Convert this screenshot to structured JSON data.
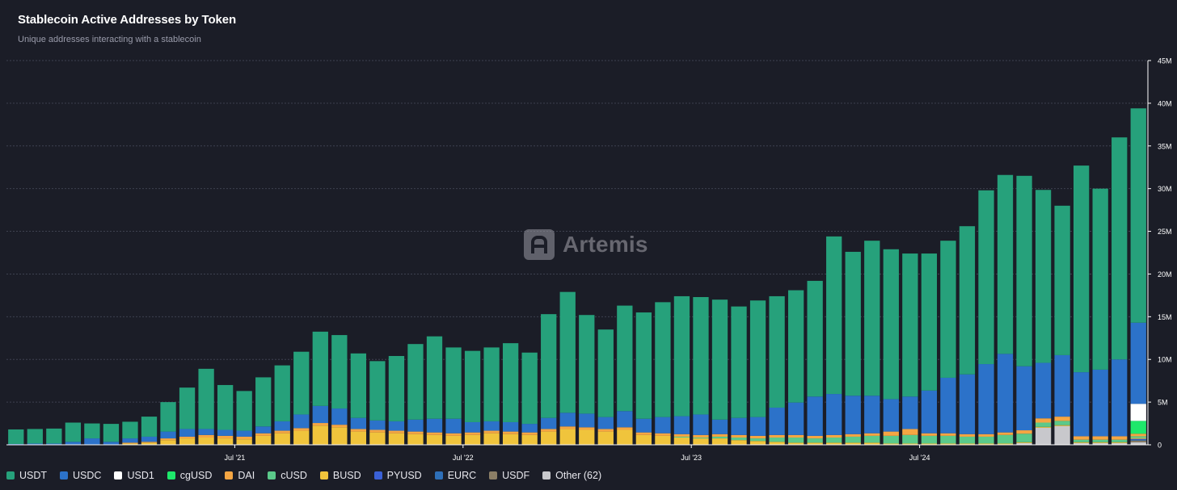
{
  "header": {
    "title": "Stablecoin Active Addresses by Token",
    "subtitle": "Unique addresses interacting with a stablecoin"
  },
  "watermark": {
    "label": "Artemis"
  },
  "chart_data": {
    "type": "bar",
    "stacked": true,
    "title": "Stablecoin Active Addresses by Token",
    "subtitle": "Unique addresses interacting with a stablecoin",
    "y_axis_position": "right",
    "ylim": [
      0,
      45
    ],
    "y_unit": "M",
    "y_ticks": [
      "0",
      "5M",
      "10M",
      "15M",
      "20M",
      "25M",
      "30M",
      "35M",
      "40M",
      "45M"
    ],
    "y_tick_values": [
      0,
      5,
      10,
      15,
      20,
      25,
      30,
      35,
      40,
      45
    ],
    "x_tick_labels": [
      {
        "label": "Jul '21",
        "index": 12
      },
      {
        "label": "Jul '22",
        "index": 24
      },
      {
        "label": "Jul '23",
        "index": 36
      },
      {
        "label": "Jul '24",
        "index": 48
      }
    ],
    "grid": true,
    "legend_position": "bottom-left",
    "categories": [
      "2020-08",
      "2020-09",
      "2020-10",
      "2020-11",
      "2020-12",
      "2021-01",
      "2021-02",
      "2021-03",
      "2021-04",
      "2021-05",
      "2021-06",
      "2021-07",
      "2021-08",
      "2021-09",
      "2021-10",
      "2021-11",
      "2021-12",
      "2022-01",
      "2022-02",
      "2022-03",
      "2022-04",
      "2022-05",
      "2022-06",
      "2022-07",
      "2022-08",
      "2022-09",
      "2022-10",
      "2022-11",
      "2022-12",
      "2023-01",
      "2023-02",
      "2023-03",
      "2023-04",
      "2023-05",
      "2023-06",
      "2023-07",
      "2023-08",
      "2023-09",
      "2023-10",
      "2023-11",
      "2023-12",
      "2024-01",
      "2024-02",
      "2024-03",
      "2024-04",
      "2024-05",
      "2024-06",
      "2024-07",
      "2024-08",
      "2024-09",
      "2024-10",
      "2024-11",
      "2024-12",
      "2025-01",
      "2025-02",
      "2025-03",
      "2025-04",
      "2025-05",
      "2025-06",
      "2025-07"
    ],
    "series": [
      {
        "name": "Other (62)",
        "color": "#c8c8cc",
        "values": [
          0.05,
          0.05,
          0.05,
          0.05,
          0.05,
          0.05,
          0.05,
          0.05,
          0.05,
          0.05,
          0.05,
          0.05,
          0.05,
          0.05,
          0.05,
          0.05,
          0.05,
          0.05,
          0.05,
          0.05,
          0.05,
          0.05,
          0.05,
          0.05,
          0.05,
          0.05,
          0.05,
          0.05,
          0.05,
          0.05,
          0.05,
          0.05,
          0.05,
          0.05,
          0.05,
          0.05,
          0.05,
          0.05,
          0.05,
          0.05,
          0.05,
          0.05,
          0.05,
          0.05,
          0.05,
          0.05,
          0.05,
          0.05,
          0.05,
          0.05,
          0.05,
          0.05,
          0.05,
          0.2,
          2.0,
          2.2,
          0.2,
          0.2,
          0.2,
          0.3
        ]
      },
      {
        "name": "USDF",
        "color": "#8b7e66",
        "values": [
          0,
          0,
          0,
          0,
          0,
          0,
          0,
          0,
          0,
          0,
          0,
          0,
          0,
          0,
          0,
          0,
          0,
          0,
          0,
          0,
          0,
          0,
          0,
          0,
          0,
          0,
          0,
          0,
          0,
          0,
          0,
          0,
          0,
          0,
          0,
          0,
          0,
          0,
          0,
          0,
          0,
          0,
          0,
          0,
          0,
          0,
          0,
          0,
          0,
          0,
          0,
          0,
          0,
          0,
          0,
          0,
          0,
          0,
          0,
          0.2
        ]
      },
      {
        "name": "EURC",
        "color": "#2e6fb8",
        "values": [
          0,
          0,
          0,
          0,
          0,
          0,
          0,
          0,
          0,
          0,
          0,
          0,
          0,
          0,
          0,
          0,
          0,
          0,
          0,
          0,
          0,
          0,
          0,
          0,
          0,
          0,
          0,
          0,
          0,
          0,
          0,
          0,
          0,
          0,
          0,
          0,
          0,
          0,
          0,
          0,
          0,
          0,
          0,
          0,
          0,
          0,
          0,
          0,
          0,
          0,
          0,
          0,
          0,
          0,
          0,
          0,
          0,
          0,
          0,
          0.1
        ]
      },
      {
        "name": "PYUSD",
        "color": "#3a60d6",
        "values": [
          0,
          0,
          0,
          0,
          0,
          0,
          0,
          0,
          0,
          0,
          0,
          0,
          0,
          0,
          0,
          0,
          0,
          0,
          0,
          0,
          0,
          0,
          0,
          0,
          0,
          0,
          0,
          0,
          0,
          0,
          0,
          0,
          0,
          0,
          0,
          0,
          0,
          0,
          0,
          0,
          0,
          0,
          0,
          0,
          0,
          0,
          0,
          0,
          0,
          0,
          0,
          0,
          0,
          0,
          0,
          0,
          0,
          0,
          0,
          0.1
        ]
      },
      {
        "name": "BUSD",
        "color": "#f0c43c",
        "values": [
          0,
          0,
          0,
          0,
          0,
          0,
          0.1,
          0.2,
          0.5,
          0.7,
          0.8,
          0.7,
          0.6,
          1.0,
          1.3,
          1.6,
          2.2,
          2.0,
          1.5,
          1.4,
          1.3,
          1.2,
          1.1,
          1.0,
          1.1,
          1.3,
          1.2,
          1.1,
          1.5,
          1.8,
          1.7,
          1.5,
          1.7,
          1.1,
          1.0,
          0.8,
          0.7,
          0.7,
          0.5,
          0.4,
          0.3,
          0.2,
          0.2,
          0.2,
          0.2,
          0.2,
          0.1,
          0.1,
          0.1,
          0.1,
          0.1,
          0.1,
          0.1,
          0.1,
          0.1,
          0.1,
          0.1,
          0.1,
          0.1,
          0.1
        ]
      },
      {
        "name": "cUSD",
        "color": "#5bc98a",
        "values": [
          0,
          0,
          0,
          0,
          0,
          0,
          0,
          0,
          0,
          0,
          0,
          0,
          0,
          0,
          0,
          0,
          0,
          0,
          0,
          0,
          0,
          0,
          0,
          0,
          0,
          0,
          0,
          0,
          0,
          0,
          0,
          0,
          0,
          0,
          0,
          0.1,
          0.1,
          0.2,
          0.3,
          0.3,
          0.5,
          0.6,
          0.5,
          0.6,
          0.7,
          0.8,
          0.9,
          1.0,
          0.9,
          0.9,
          0.8,
          0.8,
          1.0,
          1.0,
          0.5,
          0.5,
          0.3,
          0.3,
          0.3,
          0.2
        ]
      },
      {
        "name": "DAI",
        "color": "#f5a643",
        "values": [
          0,
          0,
          0,
          0,
          0,
          0,
          0.1,
          0.1,
          0.2,
          0.2,
          0.3,
          0.3,
          0.3,
          0.3,
          0.3,
          0.3,
          0.3,
          0.3,
          0.3,
          0.3,
          0.3,
          0.3,
          0.3,
          0.3,
          0.3,
          0.3,
          0.3,
          0.3,
          0.3,
          0.3,
          0.3,
          0.3,
          0.3,
          0.3,
          0.3,
          0.3,
          0.3,
          0.3,
          0.3,
          0.3,
          0.3,
          0.3,
          0.3,
          0.3,
          0.3,
          0.3,
          0.5,
          0.7,
          0.3,
          0.3,
          0.3,
          0.3,
          0.3,
          0.4,
          0.5,
          0.5,
          0.4,
          0.4,
          0.4,
          0.3
        ]
      },
      {
        "name": "cgUSD",
        "color": "#1ee86b",
        "values": [
          0,
          0,
          0,
          0,
          0,
          0,
          0,
          0,
          0,
          0,
          0,
          0,
          0,
          0,
          0,
          0,
          0,
          0,
          0,
          0,
          0,
          0,
          0,
          0,
          0,
          0,
          0,
          0,
          0,
          0,
          0,
          0,
          0,
          0,
          0,
          0,
          0,
          0,
          0,
          0,
          0,
          0,
          0,
          0,
          0,
          0,
          0,
          0,
          0,
          0,
          0,
          0,
          0,
          0,
          0,
          0,
          0,
          0,
          0,
          1.5
        ]
      },
      {
        "name": "USD1",
        "color": "#ffffff",
        "values": [
          0,
          0,
          0,
          0,
          0,
          0,
          0,
          0,
          0,
          0,
          0,
          0,
          0,
          0,
          0,
          0,
          0,
          0,
          0,
          0,
          0,
          0,
          0,
          0,
          0,
          0,
          0,
          0,
          0,
          0,
          0,
          0,
          0,
          0,
          0,
          0,
          0,
          0,
          0,
          0,
          0,
          0,
          0,
          0,
          0,
          0,
          0,
          0,
          0,
          0,
          0,
          0,
          0,
          0,
          0,
          0,
          0,
          0,
          0,
          2.0
        ]
      },
      {
        "name": "USDC",
        "color": "#2c72c9",
        "values": [
          0.05,
          0.1,
          0.1,
          0.3,
          0.7,
          0.3,
          0.5,
          0.6,
          0.8,
          0.9,
          0.7,
          0.7,
          0.7,
          0.8,
          1.1,
          1.6,
          2.0,
          1.9,
          1.3,
          1.1,
          1.1,
          1.4,
          1.6,
          1.7,
          1.2,
          1.1,
          1.1,
          1.0,
          1.3,
          1.6,
          1.6,
          1.4,
          1.9,
          1.6,
          1.9,
          2.1,
          2.4,
          1.7,
          2.0,
          2.2,
          3.2,
          3.8,
          4.6,
          4.8,
          4.5,
          4.4,
          3.8,
          3.8,
          5.0,
          6.5,
          7.0,
          8.2,
          9.2,
          7.5,
          6.5,
          7.2,
          7.5,
          7.8,
          9.0,
          9.5
        ]
      },
      {
        "name": "USDT",
        "color": "#26a17b",
        "values": [
          1.7,
          1.7,
          1.75,
          2.25,
          1.75,
          2.1,
          1.95,
          2.35,
          3.45,
          4.85,
          7.05,
          5.25,
          4.65,
          5.75,
          6.55,
          7.35,
          8.7,
          8.6,
          7.55,
          6.95,
          7.65,
          8.85,
          9.65,
          8.35,
          8.35,
          8.65,
          9.25,
          8.35,
          12.15,
          14.15,
          11.55,
          10.25,
          12.35,
          12.45,
          13.45,
          14.05,
          13.75,
          14.05,
          13.05,
          13.65,
          13.05,
          13.15,
          13.55,
          18.45,
          16.85,
          18.15,
          17.55,
          16.75,
          16.05,
          16.05,
          17.35,
          20.35,
          20.95,
          22.3,
          20.25,
          17.5,
          24.2,
          21.2,
          26.0,
          25.1
        ]
      }
    ],
    "legend_order": [
      "USDT",
      "USDC",
      "USD1",
      "cgUSD",
      "DAI",
      "cUSD",
      "BUSD",
      "PYUSD",
      "EURC",
      "USDF",
      "Other (62)"
    ]
  }
}
